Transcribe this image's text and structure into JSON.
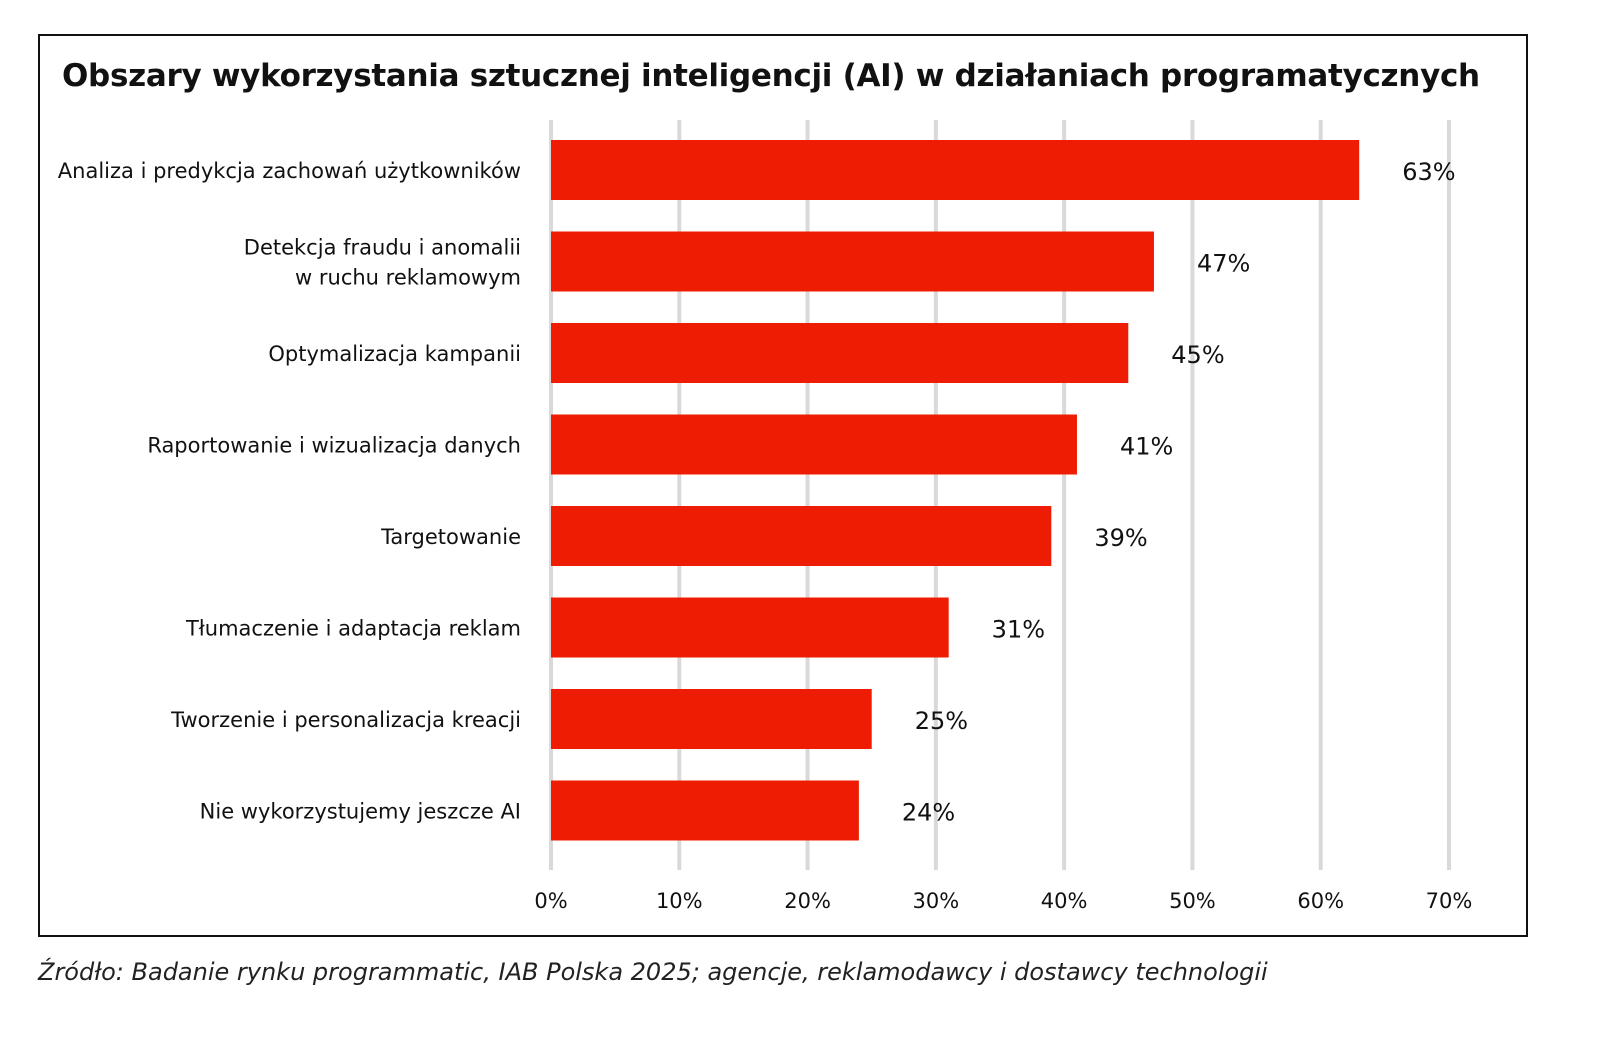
{
  "colors": {
    "bar": "#EE1C03",
    "grid": "#D9D9D9",
    "frame": "#111111",
    "text": "#111111"
  },
  "chart_data": {
    "type": "bar",
    "orientation": "horizontal",
    "title": "Obszary wykorzystania sztucznej inteligencji (AI) w działaniach programatycznych",
    "categories": [
      [
        "Analiza i predykcja zachowań użytkowników"
      ],
      [
        "Detekcja fraudu i anomalii",
        "w ruchu reklamowym"
      ],
      [
        "Optymalizacja kampanii"
      ],
      [
        "Raportowanie i wizualizacja danych"
      ],
      [
        "Targetowanie"
      ],
      [
        "Tłumaczenie i adaptacja reklam"
      ],
      [
        "Tworzenie i personalizacja kreacji"
      ],
      [
        "Nie wykorzystujemy jeszcze AI"
      ]
    ],
    "values": [
      63,
      47,
      45,
      41,
      39,
      31,
      25,
      24
    ],
    "data_labels": [
      "63%",
      "47%",
      "45%",
      "41%",
      "39%",
      "31%",
      "25%",
      "24%"
    ],
    "xlim": [
      0,
      70
    ],
    "x_ticks": [
      0,
      10,
      20,
      30,
      40,
      50,
      60,
      70
    ],
    "x_tick_labels": [
      "0%",
      "10%",
      "20%",
      "30%",
      "40%",
      "50%",
      "60%",
      "70%"
    ],
    "grid": true,
    "legend": "none"
  },
  "source": "Źródło: Badanie rynku programmatic, IAB Polska 2025; agencje, reklamodawcy i dostawcy technologii"
}
